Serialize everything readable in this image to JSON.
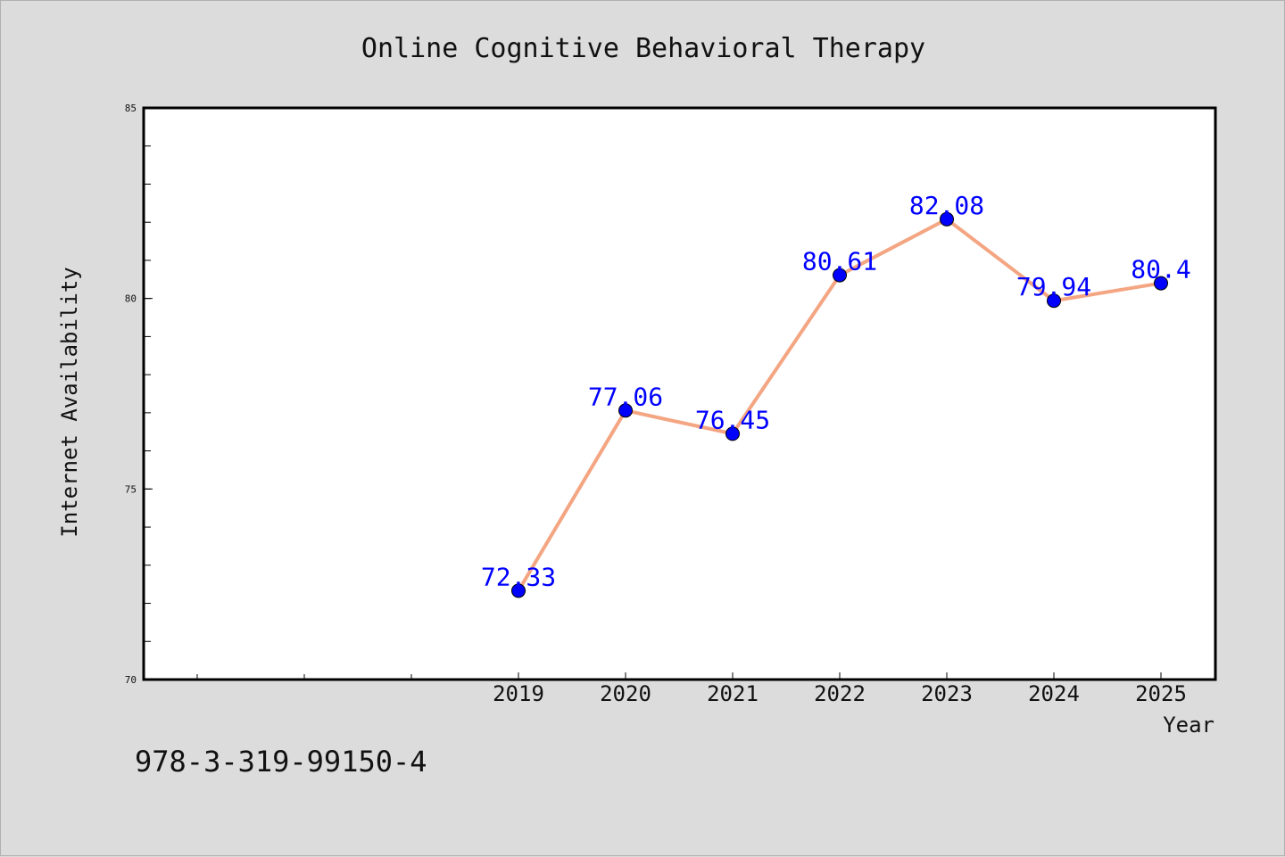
{
  "chart_data": {
    "type": "line",
    "title": "Online Cognitive Behavioral Therapy",
    "xlabel": "Year",
    "ylabel": "Internet Availability",
    "categories": [
      "2019",
      "2020",
      "2021",
      "2022",
      "2023",
      "2024",
      "2025"
    ],
    "series": [
      {
        "values": [
          72.33,
          77.06,
          76.45,
          80.61,
          82.08,
          79.94,
          80.4
        ],
        "data_labels": [
          "72.33",
          "77.06",
          "76.45",
          "80.61",
          "82.08",
          "79.94",
          "80.4"
        ]
      }
    ],
    "ylim": [
      70,
      85
    ],
    "y_ticks": [
      70,
      75,
      80,
      85
    ],
    "y_tick_labels": [
      "70",
      "75",
      "80",
      "85"
    ],
    "grid": false,
    "colors": {
      "line": "#f4a582",
      "marker": "#0000ff",
      "data_label": "#0000ff",
      "plot_background": "#ffffff",
      "page_background": "#dcdcdc"
    }
  },
  "footer_text": "978-3-319-99150-4"
}
